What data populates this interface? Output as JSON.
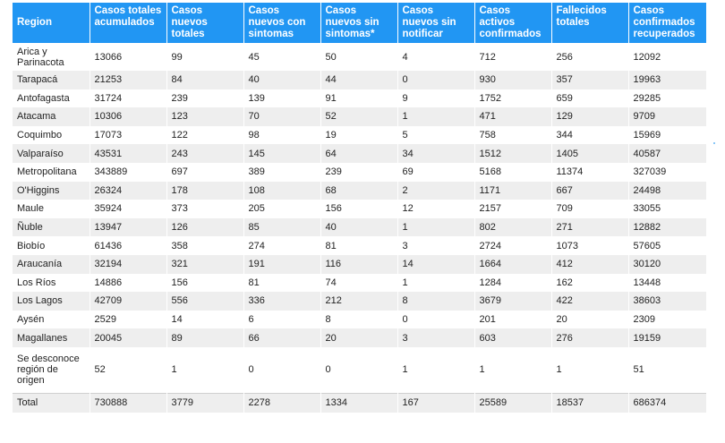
{
  "columns": [
    "Region",
    "Casos totales acumulados",
    "Casos nuevos totales",
    "Casos nuevos con sintomas",
    "Casos nuevos sin sintomas*",
    "Casos nuevos sin notificar",
    "Casos activos confirmados",
    "Fallecidos totales",
    "Casos confirmados recuperados"
  ],
  "rows": [
    [
      "Arica y Parinacota",
      "13066",
      "99",
      "45",
      "50",
      "4",
      "712",
      "256",
      "12092"
    ],
    [
      "Tarapacá",
      "21253",
      "84",
      "40",
      "44",
      "0",
      "930",
      "357",
      "19963"
    ],
    [
      "Antofagasta",
      "31724",
      "239",
      "139",
      "91",
      "9",
      "1752",
      "659",
      "29285"
    ],
    [
      "Atacama",
      "10306",
      "123",
      "70",
      "52",
      "1",
      "471",
      "129",
      "9709"
    ],
    [
      "Coquimbo",
      "17073",
      "122",
      "98",
      "19",
      "5",
      "758",
      "344",
      "15969"
    ],
    [
      "Valparaíso",
      "43531",
      "243",
      "145",
      "64",
      "34",
      "1512",
      "1405",
      "40587"
    ],
    [
      "Metropolitana",
      "343889",
      "697",
      "389",
      "239",
      "69",
      "5168",
      "11374",
      "327039"
    ],
    [
      "O'Higgins",
      "26324",
      "178",
      "108",
      "68",
      "2",
      "1171",
      "667",
      "24498"
    ],
    [
      "Maule",
      "35924",
      "373",
      "205",
      "156",
      "12",
      "2157",
      "709",
      "33055"
    ],
    [
      "Ñuble",
      "13947",
      "126",
      "85",
      "40",
      "1",
      "802",
      "271",
      "12882"
    ],
    [
      "Biobío",
      "61436",
      "358",
      "274",
      "81",
      "3",
      "2724",
      "1073",
      "57605"
    ],
    [
      "Araucanía",
      "32194",
      "321",
      "191",
      "116",
      "14",
      "1664",
      "412",
      "30120"
    ],
    [
      "Los Ríos",
      "14886",
      "156",
      "81",
      "74",
      "1",
      "1284",
      "162",
      "13448"
    ],
    [
      "Los Lagos",
      "42709",
      "556",
      "336",
      "212",
      "8",
      "3679",
      "422",
      "38603"
    ],
    [
      "Aysén",
      "2529",
      "14",
      "6",
      "8",
      "0",
      "201",
      "20",
      "2309"
    ],
    [
      "Magallanes",
      "20045",
      "89",
      "66",
      "20",
      "3",
      "603",
      "276",
      "19159"
    ],
    [
      "Se desconoce región de origen",
      "52",
      "1",
      "0",
      "0",
      "1",
      "1",
      "1",
      "51"
    ],
    [
      "Total",
      "730888",
      "3779",
      "2278",
      "1334",
      "167",
      "25589",
      "18537",
      "686374"
    ]
  ],
  "colors": {
    "header_bg": "#2196f3",
    "header_text": "#ffffff",
    "stripe": "#eeeeee"
  }
}
